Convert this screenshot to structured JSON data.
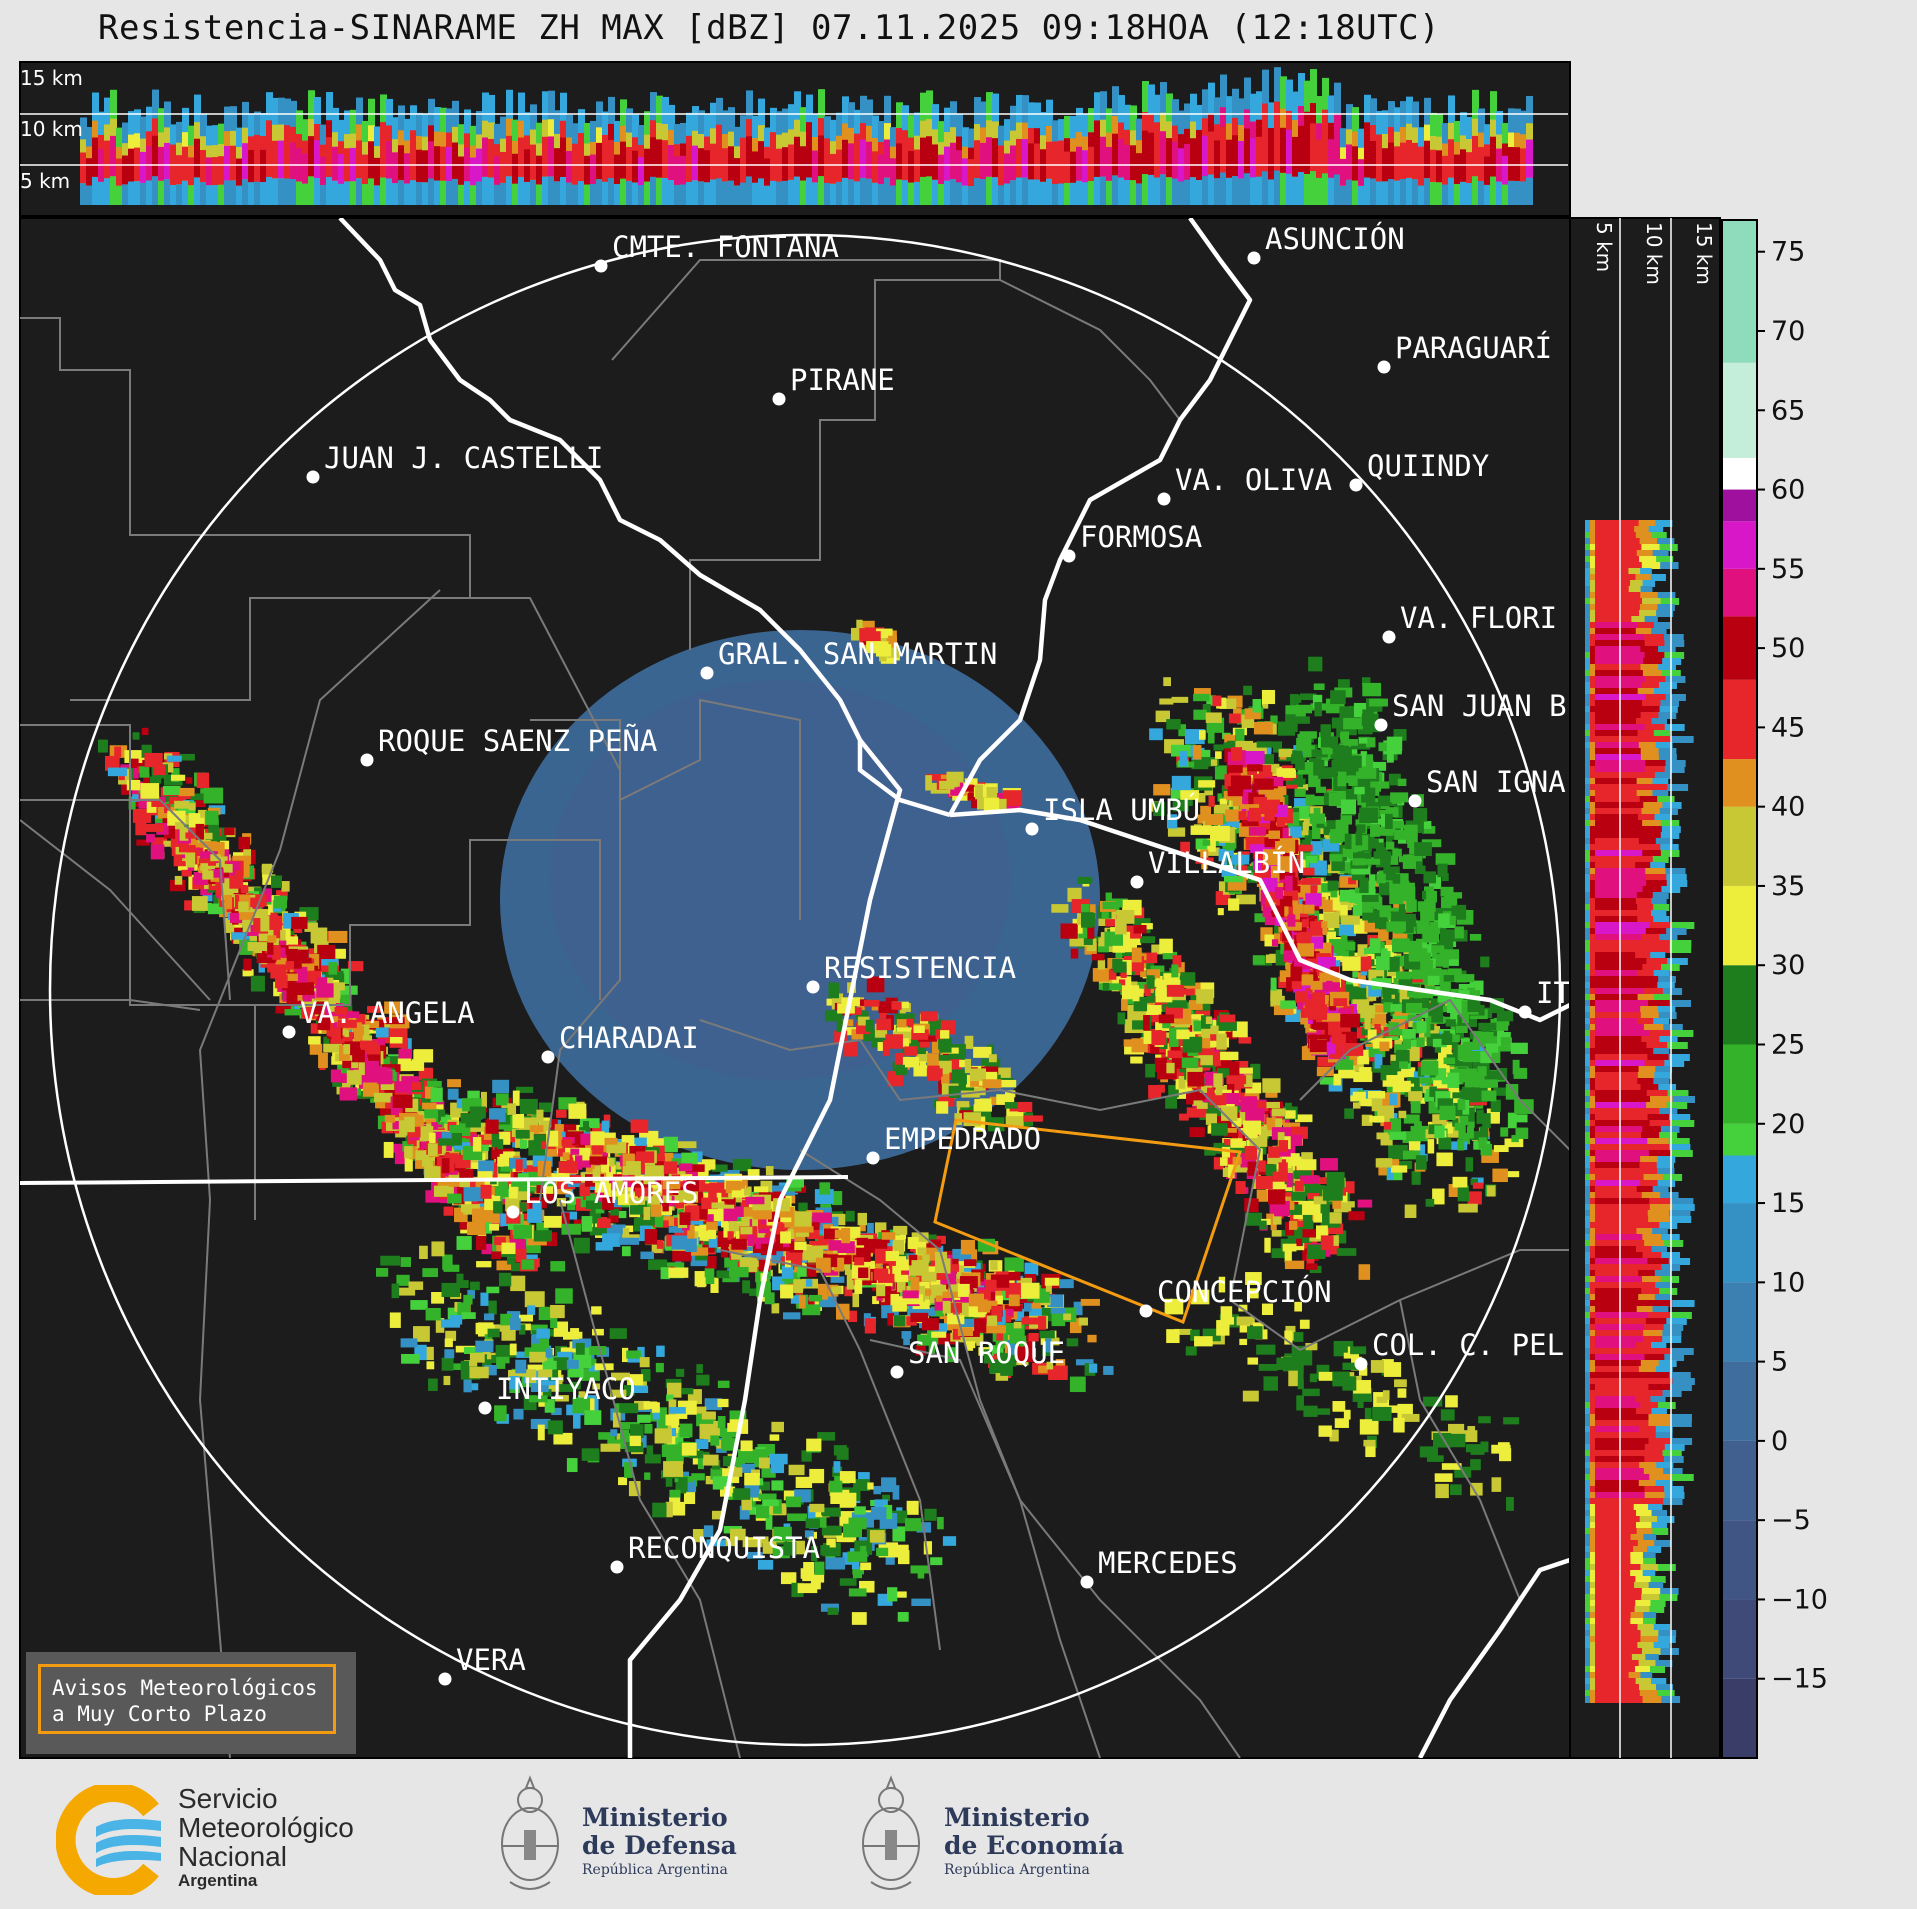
{
  "title": "Resistencia-SINARAME ZH MAX [dBZ] 07.11.2025 09:18HOA (12:18UTC)",
  "top_profile_labels": [
    "15 km",
    "10 km",
    "5 km"
  ],
  "side_profile_labels": [
    "5 km",
    "10 km",
    "15 km"
  ],
  "colorbar": {
    "unit": "dBZ",
    "ticks": [
      "75",
      "70",
      "65",
      "60",
      "55",
      "50",
      "45",
      "40",
      "35",
      "30",
      "25",
      "20",
      "15",
      "10",
      "5",
      "0",
      "−5",
      "−10",
      "−15"
    ],
    "range": [
      -20,
      77
    ],
    "stops": [
      {
        "from": -20,
        "to": -15,
        "color": "#3a3d68"
      },
      {
        "from": -15,
        "to": -10,
        "color": "#3f4a78"
      },
      {
        "from": -10,
        "to": -5,
        "color": "#415585"
      },
      {
        "from": -5,
        "to": 0,
        "color": "#42608f"
      },
      {
        "from": 0,
        "to": 5,
        "color": "#3f6e9e"
      },
      {
        "from": 5,
        "to": 10,
        "color": "#3c80b1"
      },
      {
        "from": 10,
        "to": 15,
        "color": "#3591c4"
      },
      {
        "from": 15,
        "to": 18,
        "color": "#34a7dc"
      },
      {
        "from": 18,
        "to": 20,
        "color": "#44d13c"
      },
      {
        "from": 20,
        "to": 25,
        "color": "#34b22a"
      },
      {
        "from": 25,
        "to": 30,
        "color": "#1e7d1c"
      },
      {
        "from": 30,
        "to": 35,
        "color": "#eded3c"
      },
      {
        "from": 35,
        "to": 40,
        "color": "#c8c834"
      },
      {
        "from": 40,
        "to": 43,
        "color": "#e0901e"
      },
      {
        "from": 43,
        "to": 48,
        "color": "#e6262a"
      },
      {
        "from": 48,
        "to": 52,
        "color": "#b80010"
      },
      {
        "from": 52,
        "to": 55,
        "color": "#e0117f"
      },
      {
        "from": 55,
        "to": 58,
        "color": "#d818c8"
      },
      {
        "from": 58,
        "to": 60,
        "color": "#a0109e"
      },
      {
        "from": 60,
        "to": 62,
        "color": "#ffffff"
      },
      {
        "from": 62,
        "to": 68,
        "color": "#c4eed9"
      },
      {
        "from": 68,
        "to": 77,
        "color": "#8fdcbd"
      }
    ]
  },
  "cities": [
    {
      "name": "CMTE. FONTANA"
    },
    {
      "name": "ASUNCIÓN"
    },
    {
      "name": "PARAGUARÍ"
    },
    {
      "name": "PIRANE"
    },
    {
      "name": "JUAN J. CASTELLI"
    },
    {
      "name": "VA. OLIVA"
    },
    {
      "name": "QUIINDY"
    },
    {
      "name": "FORMOSA"
    },
    {
      "name": "VA. FLORI"
    },
    {
      "name": "GRAL. SAN MARTIN"
    },
    {
      "name": "SAN JUAN B"
    },
    {
      "name": "ROQUE SAENZ PEÑA"
    },
    {
      "name": "SAN IGNA"
    },
    {
      "name": "ISLA UMBÚ"
    },
    {
      "name": "VILLALBÍN"
    },
    {
      "name": "RESISTENCIA"
    },
    {
      "name": "VA. ANGELA"
    },
    {
      "name": "CHARADAI"
    },
    {
      "name": "IT"
    },
    {
      "name": "EMPEDRADO"
    },
    {
      "name": "LOS AMORES"
    },
    {
      "name": "CONCEPCIÓN"
    },
    {
      "name": "COL. C. PEL"
    },
    {
      "name": "SAN ROQUE"
    },
    {
      "name": "INTIYACO"
    },
    {
      "name": "RECONQUISTA"
    },
    {
      "name": "MERCEDES"
    },
    {
      "name": "VERA"
    }
  ],
  "aviso": {
    "line1": "Avisos Meteorológicos",
    "line2": "a Muy Corto Plazo"
  },
  "footer": {
    "smn": {
      "line1": "Servicio",
      "line2": "Meteorológico",
      "line3": "Nacional",
      "line4": "Argentina"
    },
    "defensa": {
      "line1": "Ministerio",
      "line2": "de Defensa",
      "line3": "República Argentina"
    },
    "economia": {
      "line1": "Ministerio",
      "line2": "de Economía",
      "line3": "República Argentina"
    }
  }
}
